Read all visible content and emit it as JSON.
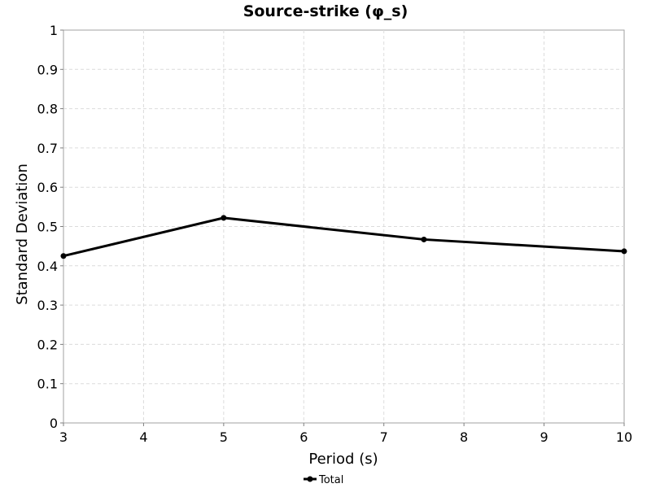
{
  "chart_data": {
    "type": "line",
    "title": "Source-strike (φ_s)",
    "xlabel": "Period (s)",
    "ylabel": "Standard Deviation",
    "xlim": [
      3,
      10
    ],
    "ylim": [
      0,
      1
    ],
    "x_ticks": [
      3,
      4,
      5,
      6,
      7,
      8,
      9,
      10
    ],
    "y_ticks": [
      0,
      0.1,
      0.2,
      0.3,
      0.4,
      0.5,
      0.6,
      0.7,
      0.8,
      0.9,
      1
    ],
    "grid": true,
    "legend_position": "bottom-center",
    "series": [
      {
        "name": "Total",
        "color": "#000000",
        "x": [
          3,
          5,
          7.5,
          10
        ],
        "y": [
          0.425,
          0.522,
          0.467,
          0.437
        ]
      }
    ]
  }
}
